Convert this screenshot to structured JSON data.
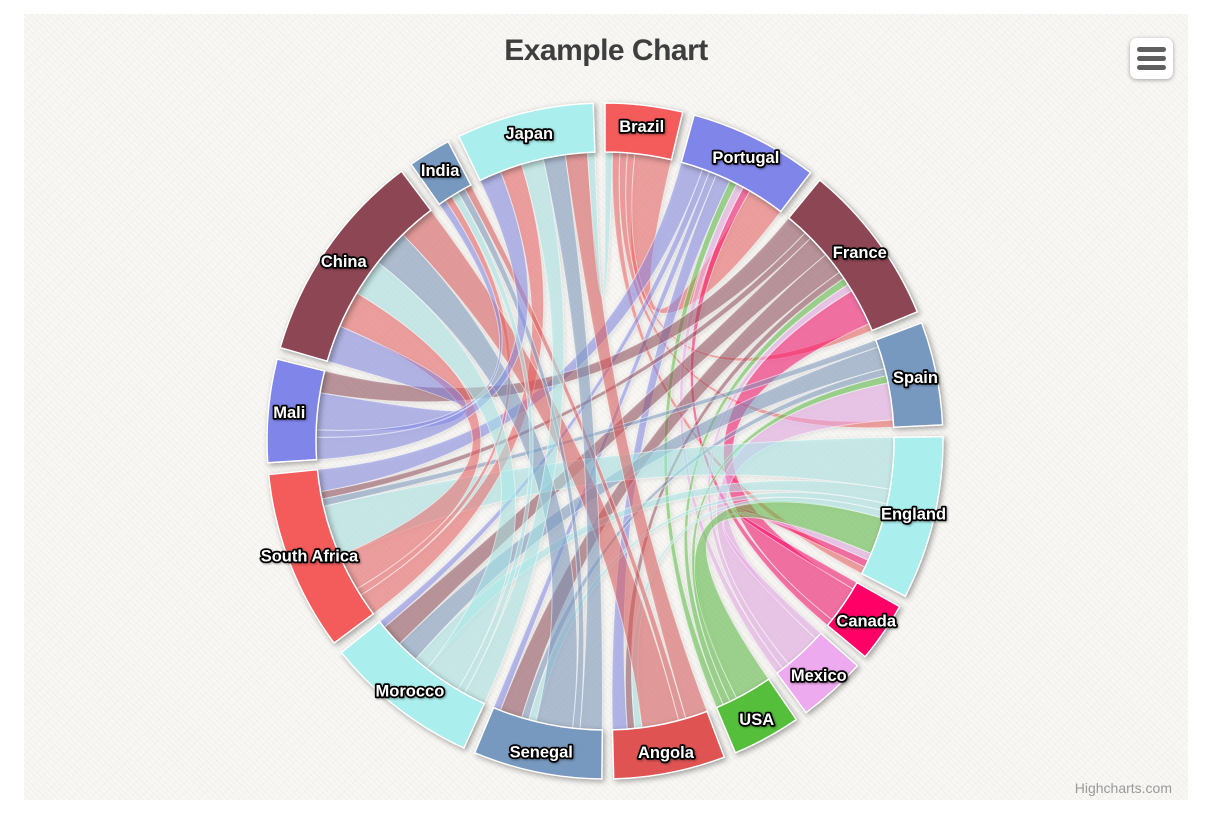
{
  "chart": {
    "title": "Example Chart",
    "credits": "Highcharts.com",
    "background_color": "#f8f7f4",
    "title_color": "#3e3e3e",
    "credits_color": "#999999"
  },
  "toolbar": {
    "menu_icon": "hamburger-menu-icon",
    "menu_bar_color": "#5f5f5f"
  },
  "chart_data": {
    "type": "dependency_wheel",
    "title": "Example Chart",
    "layout": {
      "start_angle_deg": 0,
      "direction": "clockwise",
      "node_gap_deg": 2,
      "link_opacity": 0.5,
      "label_style": "white-bold-with-black-outline"
    },
    "nodes": [
      {
        "name": "Brazil",
        "color": "#f45b5b"
      },
      {
        "name": "Portugal",
        "color": "#8085e9"
      },
      {
        "name": "France",
        "color": "#8d4654"
      },
      {
        "name": "Spain",
        "color": "#7798BF"
      },
      {
        "name": "England",
        "color": "#aaeeee"
      },
      {
        "name": "Canada",
        "color": "#ff0066"
      },
      {
        "name": "Mexico",
        "color": "#eeaaee"
      },
      {
        "name": "USA",
        "color": "#55BF3B"
      },
      {
        "name": "Angola",
        "color": "#DF5353"
      },
      {
        "name": "Senegal",
        "color": "#7798BF"
      },
      {
        "name": "Morocco",
        "color": "#aaeeee"
      },
      {
        "name": "South Africa",
        "color": "#f45b5b"
      },
      {
        "name": "Mali",
        "color": "#8085e9"
      },
      {
        "name": "China",
        "color": "#8d4654"
      },
      {
        "name": "India",
        "color": "#7798BF"
      },
      {
        "name": "Japan",
        "color": "#aaeeee"
      }
    ],
    "links": [
      {
        "from": "Brazil",
        "to": "Portugal",
        "weight": 5
      },
      {
        "from": "Brazil",
        "to": "France",
        "weight": 1
      },
      {
        "from": "Brazil",
        "to": "Spain",
        "weight": 1
      },
      {
        "from": "Brazil",
        "to": "England",
        "weight": 1
      },
      {
        "from": "Canada",
        "to": "Portugal",
        "weight": 1
      },
      {
        "from": "Canada",
        "to": "France",
        "weight": 5
      },
      {
        "from": "Canada",
        "to": "England",
        "weight": 1
      },
      {
        "from": "Mexico",
        "to": "Portugal",
        "weight": 1
      },
      {
        "from": "Mexico",
        "to": "France",
        "weight": 1
      },
      {
        "from": "Mexico",
        "to": "Spain",
        "weight": 5
      },
      {
        "from": "Mexico",
        "to": "England",
        "weight": 1
      },
      {
        "from": "USA",
        "to": "Portugal",
        "weight": 1
      },
      {
        "from": "USA",
        "to": "France",
        "weight": 1
      },
      {
        "from": "USA",
        "to": "Spain",
        "weight": 1
      },
      {
        "from": "USA",
        "to": "England",
        "weight": 5
      },
      {
        "from": "Portugal",
        "to": "Angola",
        "weight": 2
      },
      {
        "from": "Portugal",
        "to": "Senegal",
        "weight": 1
      },
      {
        "from": "Portugal",
        "to": "Morocco",
        "weight": 1
      },
      {
        "from": "Portugal",
        "to": "South Africa",
        "weight": 3
      },
      {
        "from": "France",
        "to": "Angola",
        "weight": 1
      },
      {
        "from": "France",
        "to": "Senegal",
        "weight": 3
      },
      {
        "from": "France",
        "to": "Mali",
        "weight": 3
      },
      {
        "from": "France",
        "to": "Morocco",
        "weight": 3
      },
      {
        "from": "France",
        "to": "South Africa",
        "weight": 1
      },
      {
        "from": "Spain",
        "to": "Senegal",
        "weight": 1
      },
      {
        "from": "Spain",
        "to": "Morocco",
        "weight": 3
      },
      {
        "from": "Spain",
        "to": "South Africa",
        "weight": 1
      },
      {
        "from": "England",
        "to": "Angola",
        "weight": 1
      },
      {
        "from": "England",
        "to": "Senegal",
        "weight": 1
      },
      {
        "from": "England",
        "to": "Morocco",
        "weight": 2
      },
      {
        "from": "England",
        "to": "South Africa",
        "weight": 7
      },
      {
        "from": "South Africa",
        "to": "China",
        "weight": 5
      },
      {
        "from": "South Africa",
        "to": "India",
        "weight": 1
      },
      {
        "from": "South Africa",
        "to": "Japan",
        "weight": 3
      },
      {
        "from": "Angola",
        "to": "China",
        "weight": 5
      },
      {
        "from": "Angola",
        "to": "India",
        "weight": 1
      },
      {
        "from": "Angola",
        "to": "Japan",
        "weight": 3
      },
      {
        "from": "Senegal",
        "to": "China",
        "weight": 5
      },
      {
        "from": "Senegal",
        "to": "India",
        "weight": 1
      },
      {
        "from": "Senegal",
        "to": "Japan",
        "weight": 3
      },
      {
        "from": "Mali",
        "to": "China",
        "weight": 5
      },
      {
        "from": "Mali",
        "to": "India",
        "weight": 1
      },
      {
        "from": "Mali",
        "to": "Japan",
        "weight": 3
      },
      {
        "from": "Morocco",
        "to": "China",
        "weight": 5
      },
      {
        "from": "Morocco",
        "to": "India",
        "weight": 1
      },
      {
        "from": "Morocco",
        "to": "Japan",
        "weight": 3
      },
      {
        "from": "Japan",
        "to": "Brazil",
        "weight": 1
      }
    ]
  }
}
